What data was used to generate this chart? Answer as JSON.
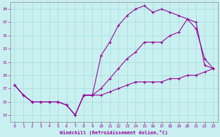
{
  "xlabel": "Windchill (Refroidissement éolien,°C)",
  "bg_color": "#c8f0f0",
  "grid_color": "#a8d8d8",
  "line_color": "#990099",
  "xlim": [
    -0.5,
    23.5
  ],
  "ylim": [
    22,
    40
  ],
  "yticks": [
    23,
    25,
    27,
    29,
    31,
    33,
    35,
    37,
    39
  ],
  "xticks": [
    0,
    1,
    2,
    3,
    4,
    5,
    6,
    7,
    8,
    9,
    10,
    11,
    12,
    13,
    14,
    15,
    16,
    17,
    18,
    19,
    20,
    21,
    22,
    23
  ],
  "line1_x": [
    0,
    1,
    2,
    3,
    4,
    5,
    6,
    7,
    8,
    9,
    10,
    11,
    12,
    13,
    14,
    15,
    16,
    17,
    18,
    19,
    20,
    21,
    22,
    23
  ],
  "line1_y": [
    27.5,
    26,
    25,
    25,
    25,
    25,
    24.5,
    23,
    26,
    26,
    26,
    26.5,
    27,
    27.5,
    28,
    28,
    28,
    28,
    28.5,
    28.5,
    29,
    29,
    29.5,
    30
  ],
  "line2_x": [
    0,
    1,
    2,
    3,
    4,
    5,
    6,
    7,
    8,
    9,
    10,
    11,
    12,
    13,
    14,
    15,
    16,
    17,
    18,
    19,
    20,
    21,
    22,
    23
  ],
  "line2_y": [
    27.5,
    26,
    25,
    25,
    25,
    25,
    24.5,
    23,
    26,
    26,
    27,
    28.5,
    30,
    31.5,
    32.5,
    34,
    34,
    34,
    35,
    35.5,
    37.5,
    36,
    31.5,
    30
  ],
  "line3_x": [
    0,
    1,
    2,
    3,
    4,
    5,
    6,
    7,
    8,
    9,
    10,
    11,
    12,
    13,
    14,
    15,
    16,
    17,
    18,
    19,
    20,
    21,
    22,
    23
  ],
  "line3_y": [
    27.5,
    26,
    25,
    25,
    25,
    25,
    24.5,
    23,
    26,
    26,
    32,
    34,
    36.5,
    38,
    39,
    39.5,
    38.5,
    39,
    38.5,
    38,
    37.5,
    37,
    30.5,
    30
  ]
}
